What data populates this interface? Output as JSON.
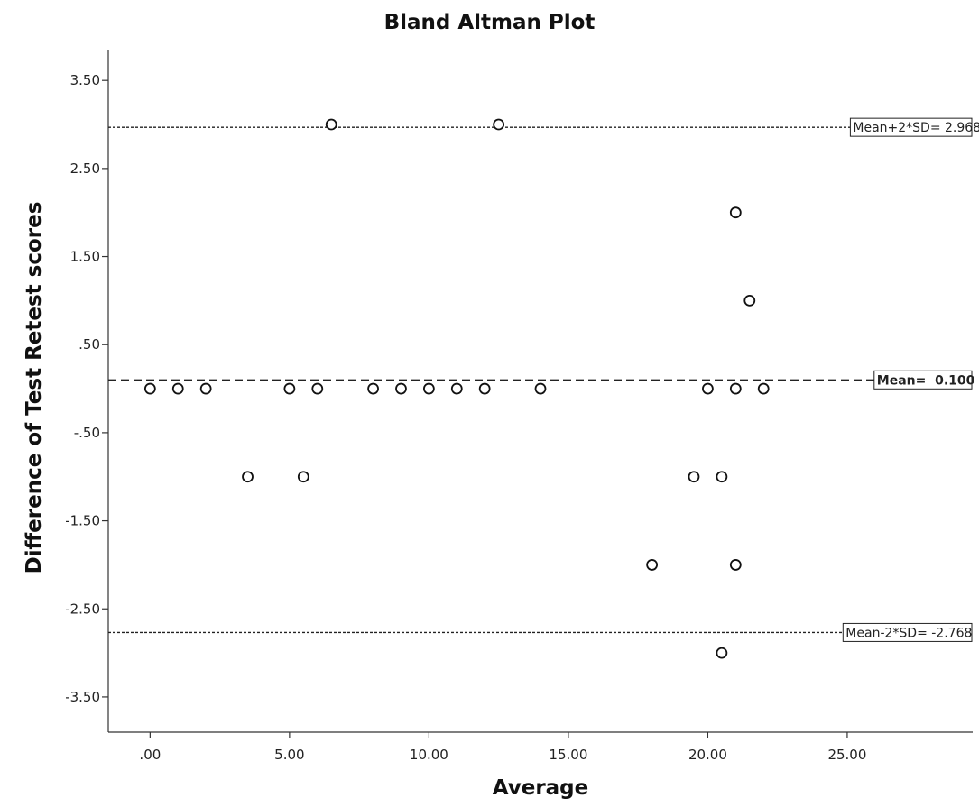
{
  "chart_data": {
    "type": "scatter",
    "title": "Bland Altman Plot",
    "xlabel": "Average",
    "ylabel": "Difference of Test Retest scores",
    "xlim": [
      -1.5,
      29.5
    ],
    "ylim": [
      -3.9,
      3.85
    ],
    "x_ticks": [
      0,
      5,
      10,
      15,
      20,
      25
    ],
    "x_tick_labels": [
      ".00",
      "5.00",
      "10.00",
      "15.00",
      "20.00",
      "25.00"
    ],
    "y_ticks": [
      3.5,
      2.5,
      1.5,
      0.5,
      -0.5,
      -1.5,
      -2.5,
      -3.5
    ],
    "y_tick_labels": [
      "3.50",
      "2.50",
      "1.50",
      ".50",
      "-.50",
      "-1.50",
      "-2.50",
      "-3.50"
    ],
    "grid": false,
    "points": [
      {
        "x": 0,
        "y": 0
      },
      {
        "x": 1,
        "y": 0
      },
      {
        "x": 2,
        "y": 0
      },
      {
        "x": 5,
        "y": 0
      },
      {
        "x": 6,
        "y": 0
      },
      {
        "x": 8,
        "y": 0
      },
      {
        "x": 9,
        "y": 0
      },
      {
        "x": 10,
        "y": 0
      },
      {
        "x": 11,
        "y": 0
      },
      {
        "x": 12,
        "y": 0
      },
      {
        "x": 14,
        "y": 0
      },
      {
        "x": 20,
        "y": 0
      },
      {
        "x": 21,
        "y": 0
      },
      {
        "x": 22,
        "y": 0
      },
      {
        "x": 6.5,
        "y": 3
      },
      {
        "x": 12.5,
        "y": 3
      },
      {
        "x": 21,
        "y": 2
      },
      {
        "x": 21.5,
        "y": 1
      },
      {
        "x": 3.5,
        "y": -1
      },
      {
        "x": 5.5,
        "y": -1
      },
      {
        "x": 19.5,
        "y": -1
      },
      {
        "x": 20.5,
        "y": -1
      },
      {
        "x": 18,
        "y": -2
      },
      {
        "x": 21,
        "y": -2
      },
      {
        "x": 20.5,
        "y": -3
      }
    ],
    "reference_lines": [
      {
        "name": "upper",
        "value": 2.968,
        "label": "Mean+2*SD= 2.968",
        "style": "dotted",
        "bold": false
      },
      {
        "name": "mean",
        "value": 0.1,
        "label": "Mean=  0.100",
        "style": "dashed",
        "bold": true
      },
      {
        "name": "lower",
        "value": -2.768,
        "label": "Mean-2*SD= -2.768",
        "style": "dotted",
        "bold": false
      }
    ]
  }
}
